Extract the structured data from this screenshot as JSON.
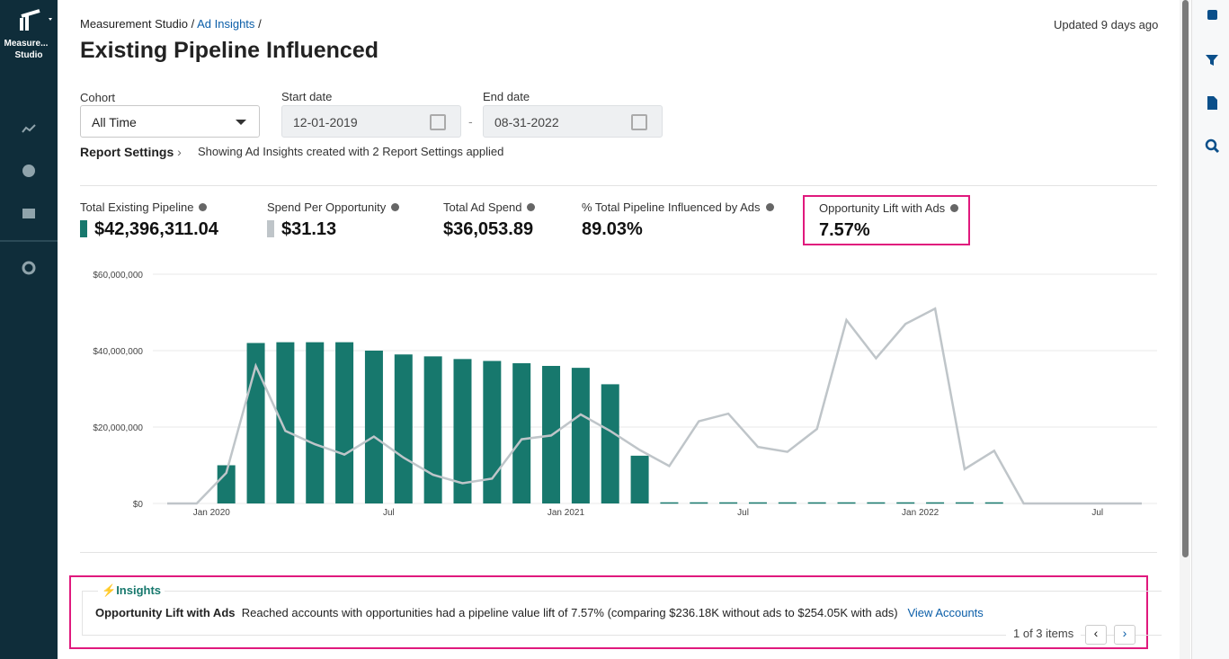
{
  "sidebar": {
    "brand": [
      "Measure...",
      "Studio"
    ]
  },
  "breadcrumb": {
    "items": [
      "Measurement Studio",
      "Ad Insights"
    ],
    "separator": "/"
  },
  "updated": "Updated 9 days ago",
  "title": "Existing Pipeline Influenced",
  "filters": {
    "cohort": {
      "label": "Cohort",
      "value": "All Time"
    },
    "start": {
      "label": "Start date",
      "value": "12-01-2019"
    },
    "end": {
      "label": "End date",
      "value": "08-31-2022"
    },
    "dash": "-"
  },
  "report_settings": {
    "label": "Report Settings",
    "note": "Showing Ad Insights created with 2 Report Settings applied"
  },
  "kpis": [
    {
      "value": "$42,396,311.04"
    },
    {
      "value": "$31.13"
    },
    {
      "label": "Total Ad Spend",
      "value": "$36,053.89"
    },
    {
      "label": "% Total Pipeline Influenced by Ads",
      "value": "89.03%"
    },
    {
      "label": "Opportunity Lift with Ads",
      "value": "7.57%"
    }
  ],
  "chart_data": {
    "type": "bar-line",
    "categories": [
      null,
      null,
      "Jan 2020",
      null,
      null,
      null,
      null,
      null,
      "Jul",
      null,
      null,
      null,
      null,
      null,
      "Jan 2021",
      null,
      null,
      null,
      null,
      null,
      "Jul",
      null,
      null,
      null,
      null,
      null,
      "Jan 2022",
      null,
      null,
      null,
      null,
      null,
      "Jul",
      null
    ],
    "series": [
      {
        "name": "Total Existing Pipeline",
        "type": "bar",
        "color": "#17786d",
        "values": [
          0,
          0,
          10000000,
          42000000,
          42200000,
          42200000,
          42200000,
          40000000,
          39000000,
          38500000,
          37800000,
          37300000,
          36700000,
          36000000,
          35500000,
          31200000,
          12500000,
          300000,
          300000,
          300000,
          300000,
          300000,
          300000,
          300000,
          300000,
          300000,
          300000,
          300000,
          300000,
          0,
          0,
          0,
          0,
          0
        ]
      },
      {
        "name": "Spend Per Opportunity",
        "type": "line",
        "color": "#bfc5c9",
        "values": [
          0,
          0,
          8000000,
          36000000,
          19000000,
          15500000,
          12800000,
          17500000,
          12000000,
          7500000,
          5300000,
          6500000,
          16800000,
          17800000,
          23300000,
          19000000,
          14000000,
          9800000,
          21500000,
          23500000,
          14800000,
          13500000,
          19500000,
          48000000,
          38000000,
          47000000,
          51000000,
          9000000,
          13800000,
          0,
          0,
          0,
          0,
          0
        ]
      }
    ],
    "ylim": [
      0,
      60000000
    ],
    "yticks": [
      {
        "value": 0,
        "label": "$0"
      },
      {
        "value": 20000000,
        "label": "$20,000,000"
      },
      {
        "value": 40000000,
        "label": "$40,000,000"
      },
      {
        "value": 60000000,
        "label": "$60,000,000"
      }
    ],
    "grid": true
  },
  "insights": {
    "heading": "Insights",
    "title": "Opportunity Lift with Ads",
    "text": "Reached accounts with opportunities had a pipeline value lift of 7.57% (comparing $236.18K without ads to $254.05K with ads)",
    "link": "View Accounts",
    "pager": "1 of 3 items"
  }
}
